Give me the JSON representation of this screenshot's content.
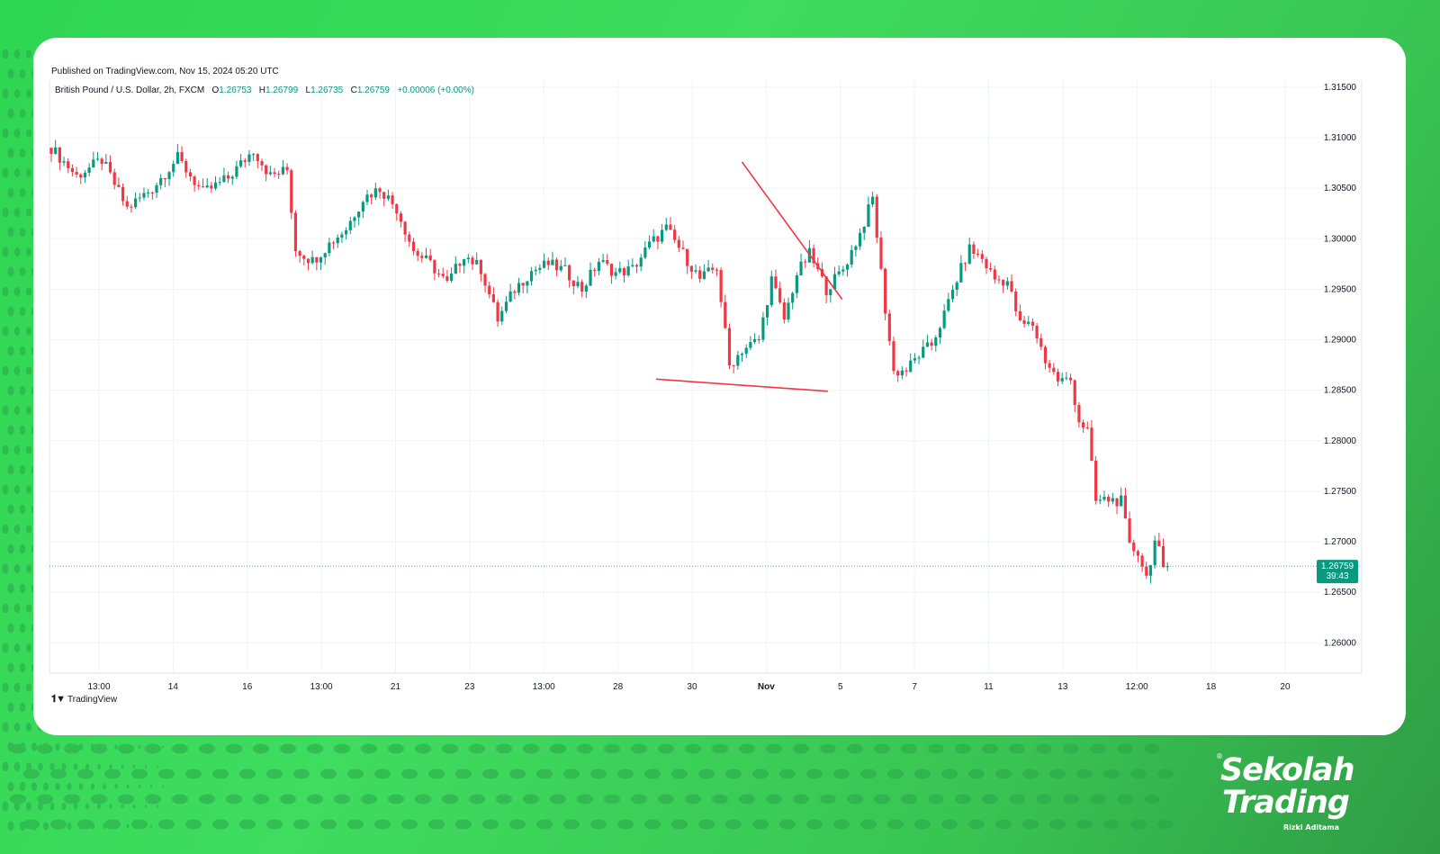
{
  "published": "Published on TradingView.com, Nov 15, 2024 05:20 UTC",
  "legend": {
    "symbol": "British Pound / U.S. Dollar, 2h, FXCM",
    "o_label": "O",
    "o": "1.26753",
    "h_label": "H",
    "h": "1.26799",
    "l_label": "L",
    "l": "1.26735",
    "c_label": "C",
    "c": "1.26759",
    "change": "+0.00006 (+0.00%)"
  },
  "price_tag": {
    "price": "1.26759",
    "countdown": "39:43"
  },
  "footer_logo": "TradingView",
  "brand": {
    "line1": "Sekolah",
    "line2": "Trading",
    "sub": "Rizki Aditama",
    "reg": "®"
  },
  "colors": {
    "up": "#089981",
    "down": "#f23645",
    "trendline": "#f23645",
    "price_tag_bg": "#089981",
    "background": "#3fdc5f"
  },
  "chart_data": {
    "type": "candlestick",
    "title": "",
    "ylim": [
      1.257,
      1.3157
    ],
    "y_ticks": [
      "1.31500",
      "1.31000",
      "1.30500",
      "1.30000",
      "1.29500",
      "1.29000",
      "1.28500",
      "1.28000",
      "1.27500",
      "1.27000",
      "1.26500",
      "1.26000"
    ],
    "x_ticks": [
      "13:00",
      "14",
      "16",
      "13:00",
      "21",
      "23",
      "13:00",
      "28",
      "30",
      "Nov",
      "5",
      "7",
      "11",
      "13",
      "12:00",
      "18",
      "20"
    ],
    "close_path": [
      [
        0,
        1.309
      ],
      [
        6,
        1.3062
      ],
      [
        12,
        1.3078
      ],
      [
        18,
        1.303
      ],
      [
        24,
        1.305
      ],
      [
        30,
        1.308
      ],
      [
        36,
        1.3045
      ],
      [
        42,
        1.306
      ],
      [
        48,
        1.3088
      ],
      [
        52,
        1.3062
      ],
      [
        56,
        1.3068
      ],
      [
        58,
        1.299
      ],
      [
        62,
        1.2978
      ],
      [
        66,
        1.2995
      ],
      [
        70,
        1.301
      ],
      [
        74,
        1.304
      ],
      [
        78,
        1.305
      ],
      [
        82,
        1.303
      ],
      [
        86,
        1.2988
      ],
      [
        90,
        1.2975
      ],
      [
        94,
        1.2955
      ],
      [
        98,
        1.2985
      ],
      [
        102,
        1.297
      ],
      [
        106,
        1.292
      ],
      [
        110,
        1.295
      ],
      [
        114,
        1.2968
      ],
      [
        118,
        1.2975
      ],
      [
        122,
        1.2968
      ],
      [
        126,
        1.295
      ],
      [
        130,
        1.2978
      ],
      [
        134,
        1.2966
      ],
      [
        138,
        1.297
      ],
      [
        142,
        1.2994
      ],
      [
        146,
        1.301
      ],
      [
        150,
        1.2985
      ],
      [
        154,
        1.296
      ],
      [
        158,
        1.2972
      ],
      [
        161,
        1.2874
      ],
      [
        164,
        1.289
      ],
      [
        168,
        1.29
      ],
      [
        171,
        1.296
      ],
      [
        174,
        1.292
      ],
      [
        177,
        1.2965
      ],
      [
        180,
        1.2985
      ],
      [
        184,
        1.295
      ],
      [
        188,
        1.297
      ],
      [
        192,
        1.3005
      ],
      [
        195,
        1.304
      ],
      [
        198,
        1.293
      ],
      [
        200,
        1.2868
      ],
      [
        203,
        1.287
      ],
      [
        206,
        1.2885
      ],
      [
        209,
        1.2895
      ],
      [
        212,
        1.2925
      ],
      [
        215,
        1.296
      ],
      [
        218,
        1.299
      ],
      [
        221,
        1.298
      ],
      [
        224,
        1.296
      ],
      [
        227,
        1.2958
      ],
      [
        230,
        1.2915
      ],
      [
        233,
        1.2915
      ],
      [
        236,
        1.288
      ],
      [
        239,
        1.286
      ],
      [
        242,
        1.286
      ],
      [
        244,
        1.282
      ],
      [
        246,
        1.281
      ],
      [
        248,
        1.274
      ],
      [
        251,
        1.2742
      ],
      [
        254,
        1.274
      ],
      [
        256,
        1.2695
      ],
      [
        258,
        1.269
      ],
      [
        260,
        1.2665
      ],
      [
        262,
        1.27
      ],
      [
        263,
        1.269
      ],
      [
        264,
        1.267
      ],
      [
        265,
        1.2676
      ]
    ],
    "trendlines": [
      {
        "from": [
          "Nov 4",
          1.3076
        ],
        "to": [
          "Nov 11",
          1.294
        ]
      },
      {
        "from": [
          "Oct 29",
          1.2861
        ],
        "to": [
          "Nov 10",
          1.2849
        ]
      }
    ],
    "last_price": 1.26759
  }
}
